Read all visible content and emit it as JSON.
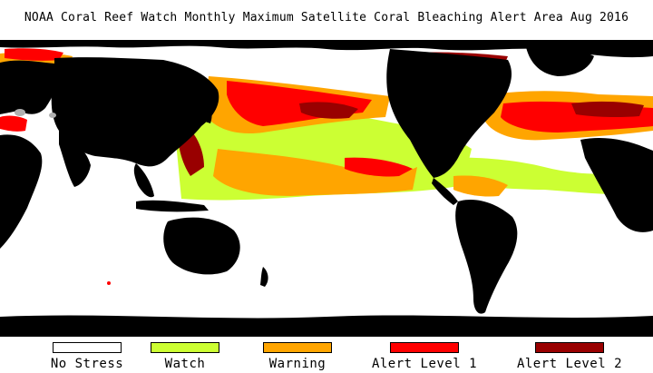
{
  "header": {
    "title": "NOAA Coral Reef Watch Monthly Maximum Satellite Coral Bleaching Alert Area   Aug 2016"
  },
  "colors": {
    "ocean_no_stress": "#ffffff",
    "land": "#000000",
    "watch": "#ccff33",
    "warning": "#ffa500",
    "alert_level_1": "#ff0000",
    "alert_level_2": "#990000",
    "lakes": "#b0b0b0"
  },
  "legend": {
    "items": [
      {
        "label": "No Stress",
        "color": "#ffffff"
      },
      {
        "label": "Watch",
        "color": "#ccff33"
      },
      {
        "label": "Warning",
        "color": "#ffa500"
      },
      {
        "label": "Alert Level 1",
        "color": "#ff0000"
      },
      {
        "label": "Alert Level 2",
        "color": "#990000"
      }
    ]
  }
}
